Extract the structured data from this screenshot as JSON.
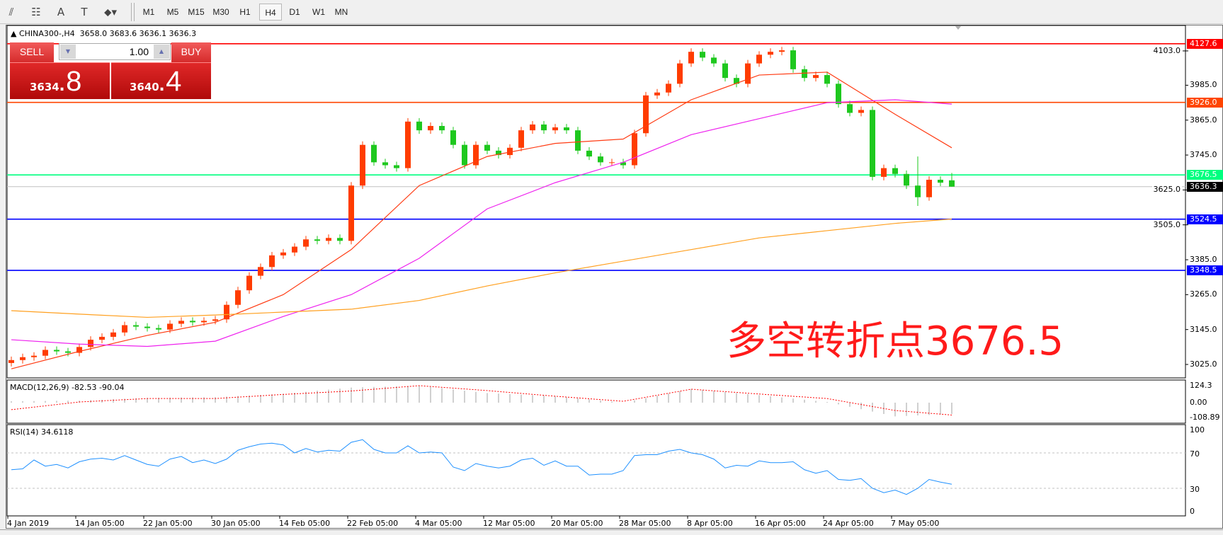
{
  "toolbar": {
    "tools": [
      {
        "name": "elliott-wave-icon",
        "glyph": "⫽"
      },
      {
        "name": "fibonacci-icon",
        "glyph": "☷"
      },
      {
        "name": "text-icon",
        "glyph": "A"
      },
      {
        "name": "text-label-icon",
        "glyph": "T"
      },
      {
        "name": "arrows-icon",
        "glyph": "⬥▾"
      }
    ],
    "timeframes": [
      "M1",
      "M5",
      "M15",
      "M30",
      "H1",
      "H4",
      "D1",
      "W1",
      "MN"
    ],
    "active_timeframe": "H4"
  },
  "chart": {
    "title": "▲ CHINA300-,H4  3658.0 3683.6 3636.1 3636.3",
    "trade_panel": {
      "sell_label": "SELL",
      "buy_label": "BUY",
      "lot": "1.00",
      "sell_price_small": "3634",
      "sell_price_big": ".8",
      "buy_price_small": "3640",
      "buy_price_big": ".4"
    },
    "annotation": "多空转折点3676.5",
    "colors": {
      "bull": "#ff3c00",
      "bear": "#1ec81e",
      "ma_fast": "#ff3c14",
      "ma_mid": "#ee22ee",
      "ma_slow": "#ffa020",
      "rsi": "#1e90ff",
      "macd_hist": "#c0c0c0",
      "macd_signal": "#ff0000"
    }
  },
  "chart_data": [
    {
      "type": "candlestick",
      "symbol": "CHINA300-",
      "timeframe": "H4",
      "last_bar": {
        "open": 3658.0,
        "high": 3683.6,
        "low": 3636.1,
        "close": 3636.3
      },
      "close": [
        3040,
        3050,
        3055,
        3075,
        3070,
        3065,
        3085,
        3110,
        3120,
        3135,
        3160,
        3155,
        3150,
        3145,
        3165,
        3175,
        3170,
        3175,
        3180,
        3230,
        3280,
        3330,
        3360,
        3400,
        3410,
        3430,
        3455,
        3450,
        3460,
        3450,
        3640,
        3780,
        3720,
        3710,
        3700,
        3860,
        3830,
        3845,
        3830,
        3780,
        3710,
        3780,
        3760,
        3745,
        3770,
        3830,
        3850,
        3830,
        3840,
        3830,
        3760,
        3740,
        3720,
        3720,
        3710,
        3820,
        3950,
        3960,
        3990,
        4060,
        4100,
        4080,
        4060,
        4010,
        3990,
        4060,
        4090,
        4100,
        4105,
        4040,
        4010,
        4020,
        3990,
        3920,
        3890,
        3900,
        3670,
        3700,
        3680,
        3640,
        3600,
        3660,
        3650,
        3636.3
      ],
      "moving_averages": {
        "sample_bars": [
          0,
          6,
          12,
          18,
          24,
          30,
          36,
          42,
          48,
          54,
          60,
          66,
          72,
          78,
          83
        ],
        "fast": [
          3010,
          3070,
          3125,
          3170,
          3265,
          3420,
          3640,
          3740,
          3785,
          3800,
          3935,
          4020,
          4030,
          3885,
          3770
        ],
        "mid": [
          3110,
          3095,
          3087,
          3105,
          3190,
          3265,
          3390,
          3560,
          3650,
          3720,
          3815,
          3870,
          3925,
          3935,
          3920
        ],
        "slow": [
          3210,
          3198,
          3187,
          3195,
          3205,
          3215,
          3245,
          3295,
          3340,
          3380,
          3420,
          3460,
          3485,
          3510,
          3525
        ]
      },
      "y_ticks": [
        "4103.0",
        "3985.0",
        "3865.0",
        "3745.0",
        "3625.0",
        "3505.0",
        "3385.0",
        "3265.0",
        "3145.0",
        "3025.0"
      ],
      "ylim": [
        3025,
        4127.6
      ],
      "levels": [
        {
          "value": "4127.6",
          "color": "#ff0000"
        },
        {
          "value": "3926.0",
          "color": "#ff4500"
        },
        {
          "value": "3676.5",
          "color": "#00ff7f"
        },
        {
          "value": "3636.3",
          "color": "#000000",
          "line": "#c0c0c0"
        },
        {
          "value": "3524.5",
          "color": "#0000ff"
        },
        {
          "value": "3348.5",
          "color": "#0000ff"
        }
      ],
      "x_ticks": [
        "4 Jan 2019",
        "14 Jan 05:00",
        "22 Jan 05:00",
        "30 Jan 05:00",
        "14 Feb 05:00",
        "22 Feb 05:00",
        "4 Mar 05:00",
        "12 Mar 05:00",
        "20 Mar 05:00",
        "28 Mar 05:00",
        "8 Apr 05:00",
        "16 Apr 05:00",
        "24 Apr 05:00",
        "7 May 05:00"
      ]
    },
    {
      "type": "bar",
      "label": "MACD(12,26,9) -82.53 -90.04",
      "sample_bars": [
        0,
        6,
        12,
        18,
        24,
        30,
        36,
        42,
        48,
        54,
        60,
        66,
        72,
        78,
        83
      ],
      "macd": [
        10,
        15,
        35,
        40,
        65,
        110,
        124,
        70,
        48,
        0,
        100,
        55,
        5,
        -100,
        -82.53
      ],
      "signal": [
        -51,
        5,
        30,
        30,
        60,
        85,
        124,
        88,
        47,
        10,
        98,
        63,
        30,
        -57,
        -90.04
      ],
      "y_ticks": [
        "124.3",
        "0.00",
        "-108.89"
      ]
    },
    {
      "type": "line",
      "label": "RSI(14) 34.6118",
      "values": [
        51,
        52,
        62,
        55,
        57,
        53,
        60,
        63,
        64,
        62,
        67,
        62,
        57,
        55,
        63,
        66,
        59,
        62,
        58,
        63,
        73,
        77,
        80,
        81,
        79,
        70,
        75,
        71,
        73,
        72,
        82,
        85,
        74,
        70,
        70,
        78,
        70,
        71,
        70,
        54,
        50,
        58,
        55,
        53,
        55,
        62,
        64,
        56,
        61,
        55,
        55,
        45,
        46,
        46,
        50,
        67,
        68,
        68,
        72,
        74,
        70,
        68,
        63,
        53,
        56,
        55,
        61,
        59,
        59,
        60,
        51,
        47,
        50,
        40,
        39,
        41,
        30,
        25,
        28,
        23,
        30,
        40,
        37,
        34.6
      ],
      "levels": [
        70,
        30
      ],
      "y_ticks": [
        "100",
        "70",
        "30",
        "0"
      ],
      "ylim": [
        0,
        100
      ]
    }
  ]
}
